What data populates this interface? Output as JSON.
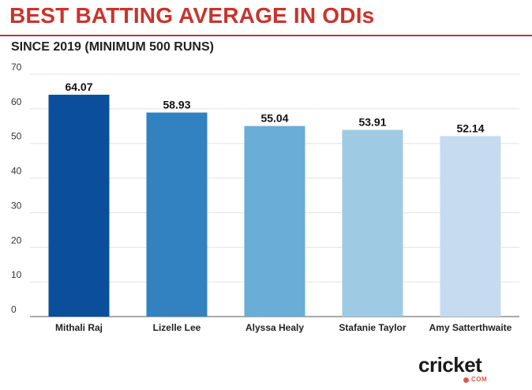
{
  "header": {
    "title": "BEST BATTING AVERAGE IN ODIs",
    "subtitle": "SINCE 2019 (MINIMUM 500 RUNS)"
  },
  "logo": {
    "wordmark": "cricket",
    "suffix": "COM"
  },
  "colors": {
    "title": "#c8342c",
    "bars": [
      "#0b4e9b",
      "#3282c1",
      "#6aadd7",
      "#9ecae3",
      "#c6dbef"
    ]
  },
  "chart_data": {
    "type": "bar",
    "categories": [
      "Mithali Raj",
      "Lizelle Lee",
      "Alyssa Healy",
      "Stafanie Taylor",
      "Amy Satterthwaite"
    ],
    "values": [
      64.07,
      58.93,
      55.04,
      53.91,
      52.14
    ],
    "value_labels": [
      "64.07",
      "58.93",
      "55.04",
      "53.91",
      "52.14"
    ],
    "ylim": [
      0,
      70
    ],
    "yticks": [
      0,
      10,
      20,
      30,
      40,
      50,
      60,
      70
    ],
    "grid": true
  }
}
